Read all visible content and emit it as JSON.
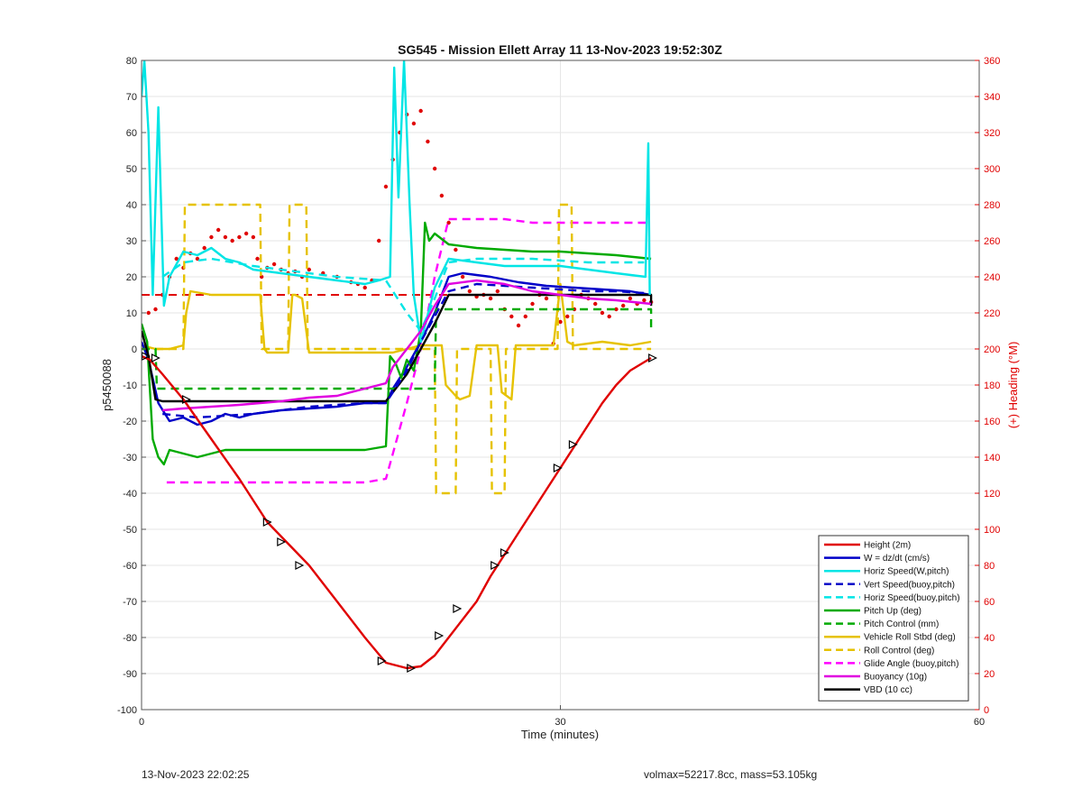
{
  "footer": {
    "timestamp": "13-Nov-2023 22:02:25",
    "params": "volmax=52217.8cc, mass=53.105kg"
  },
  "chart_data": {
    "type": "line",
    "title": "SG545 - Mission Ellett Array 11 13-Nov-2023 19:52:30Z",
    "xlabel": "Time (minutes)",
    "ylabel": "p5450088",
    "y2label": "(+) Heading (°M)",
    "xlim": [
      0,
      60
    ],
    "ylim": [
      -100,
      80
    ],
    "y2lim": [
      0,
      360
    ],
    "xticks": [
      0,
      30,
      60
    ],
    "yticks": [
      -100,
      -90,
      -80,
      -70,
      -60,
      -50,
      -40,
      -30,
      -20,
      -10,
      0,
      10,
      20,
      30,
      40,
      50,
      60,
      70,
      80
    ],
    "y2ticks": [
      0,
      20,
      40,
      60,
      80,
      100,
      120,
      140,
      160,
      180,
      200,
      220,
      240,
      260,
      280,
      300,
      320,
      340,
      360
    ],
    "grid": true,
    "legend_position": "bottom-right",
    "colors": {
      "height": "#e00000",
      "w": "#0000c8",
      "horiz": "#00e5e5",
      "pitch": "#00aa00",
      "roll": "#e6c200",
      "glide": "#ff00ff",
      "buoy": "#e000e0",
      "vbd": "#000000",
      "heading": "#e00000"
    },
    "series": [
      {
        "name": "Height (2m)",
        "color": "#e00000",
        "style": "solid",
        "x": [
          0,
          0.6,
          1.5,
          3,
          5,
          7,
          9,
          10.5,
          12,
          14,
          16,
          17.5,
          19,
          20,
          21,
          22,
          23,
          24,
          25,
          26,
          27,
          28,
          29,
          30,
          31,
          32,
          33,
          34,
          35,
          36.5
        ],
        "y": [
          -2,
          -3,
          -7,
          -14,
          -25,
          -36,
          -48,
          -54,
          -60,
          -70,
          -80,
          -87,
          -88.5,
          -88,
          -85,
          -80,
          -75,
          -70,
          -63,
          -57,
          -51,
          -45,
          -39,
          -33,
          -27,
          -21,
          -15,
          -10,
          -6,
          -2.5
        ],
        "markers": [
          [
            0.3,
            -2
          ],
          [
            1,
            -2.5
          ],
          [
            3.2,
            -14
          ],
          [
            9,
            -48
          ],
          [
            10,
            -53.5
          ],
          [
            11.3,
            -60
          ],
          [
            17.2,
            -86.5
          ],
          [
            19.3,
            -88.5
          ],
          [
            21.3,
            -79.5
          ],
          [
            22.6,
            -72
          ],
          [
            25.3,
            -60
          ],
          [
            26,
            -56.5
          ],
          [
            29.8,
            -33
          ],
          [
            30.9,
            -26.5
          ],
          [
            36.6,
            -2.5
          ]
        ]
      },
      {
        "name": "W = dz/dt (cm/s)",
        "color": "#0000c8",
        "style": "solid",
        "x": [
          0,
          0.5,
          1.2,
          2,
          3,
          4,
          5,
          6,
          7,
          8,
          10,
          12,
          14,
          16,
          17.5,
          18,
          19,
          20,
          21,
          22,
          23,
          25,
          27,
          29,
          31,
          33,
          35,
          36.5
        ],
        "y": [
          2,
          -3,
          -15,
          -20,
          -19,
          -21,
          -20,
          -18,
          -19,
          -18,
          -17,
          -16.5,
          -16,
          -15,
          -15,
          -11,
          -5,
          2,
          10,
          20,
          21,
          20,
          18.5,
          17.5,
          17,
          16.5,
          16,
          15
        ]
      },
      {
        "name": "Horiz Speed(W,pitch)",
        "color": "#00e5e5",
        "style": "solid",
        "x": [
          0,
          0.2,
          0.5,
          0.8,
          1.2,
          1.6,
          2,
          3,
          4,
          5,
          6,
          7,
          8,
          10,
          12,
          14,
          16,
          17,
          17.8,
          18.1,
          18.4,
          18.8,
          19.2,
          19.5,
          20,
          21,
          22,
          24,
          26,
          28,
          30,
          32,
          34,
          36.1,
          36.3,
          36.4
        ],
        "y": [
          70,
          80,
          60,
          15,
          67,
          12,
          20,
          27,
          26,
          28,
          25,
          24,
          22,
          21,
          20,
          19,
          18,
          19,
          20,
          78,
          42,
          80,
          40,
          15,
          2,
          17,
          25,
          24,
          23,
          23,
          23,
          22,
          21,
          20,
          57,
          15
        ]
      },
      {
        "name": "Vert Speed(buoy,pitch)",
        "color": "#0000c8",
        "style": "dashed",
        "x": [
          1.5,
          4,
          6,
          8,
          10,
          12,
          14,
          16,
          17.5,
          19,
          20,
          21,
          22,
          24,
          26,
          28,
          30,
          32,
          34,
          36
        ],
        "y": [
          -18,
          -19,
          -18.5,
          -18,
          -17,
          -16,
          -15.5,
          -15,
          -15,
          -6,
          2,
          9,
          16,
          18,
          17.5,
          17,
          16.5,
          16,
          16,
          15.5
        ]
      },
      {
        "name": "Horiz Speed(buoy,pitch)",
        "color": "#00e5e5",
        "style": "dashed",
        "x": [
          1.5,
          3,
          5,
          8,
          10,
          14,
          17.5,
          19,
          20,
          21,
          22,
          24,
          26,
          28,
          30,
          32,
          34,
          36
        ],
        "y": [
          20,
          24,
          25,
          23,
          22,
          20,
          19,
          10,
          5,
          14,
          24,
          25,
          25,
          25,
          24.5,
          24,
          24,
          24
        ]
      },
      {
        "name": "Pitch Up (deg)",
        "color": "#00aa00",
        "style": "solid",
        "x": [
          0,
          0.4,
          0.8,
          1.2,
          1.6,
          2,
          3,
          4,
          6,
          8,
          10,
          12,
          14,
          16,
          17.5,
          17.8,
          18.2,
          18.6,
          19,
          19.5,
          20,
          20.3,
          20.6,
          21,
          22,
          24,
          26,
          28,
          30,
          32,
          34,
          36.5
        ],
        "y": [
          7,
          2,
          -25,
          -30,
          -32,
          -28,
          -29,
          -30,
          -28,
          -28,
          -28,
          -28,
          -28,
          -28,
          -27,
          -2,
          -4,
          -8,
          -3,
          -6,
          5,
          35,
          30,
          32,
          29,
          28,
          27.5,
          27,
          27,
          26.5,
          26,
          25
        ]
      },
      {
        "name": "Pitch Control (mm)",
        "color": "#00aa00",
        "style": "dashed",
        "x": [
          0,
          1,
          1.1,
          17.5,
          17.6,
          21,
          21.1,
          36.5,
          36.5
        ],
        "y": [
          0,
          0,
          -11,
          -11,
          -11,
          -11,
          11,
          11,
          6
        ]
      },
      {
        "name": "Vehicle Roll Stbd (deg)",
        "color": "#e6c200",
        "style": "solid",
        "x": [
          0,
          1,
          2,
          3,
          3.2,
          3.5,
          5,
          7,
          8.5,
          8.8,
          9,
          10.5,
          10.8,
          11,
          11.5,
          12,
          14,
          16,
          17,
          18,
          19,
          20,
          21,
          21.5,
          21.8,
          22.5,
          22.8,
          23.5,
          24,
          25,
          25.5,
          25.8,
          26.5,
          26.8,
          27.5,
          28,
          29.5,
          30,
          30.5,
          31,
          33,
          35,
          36.5
        ],
        "y": [
          1,
          0,
          0,
          1,
          10,
          16,
          15,
          15,
          15,
          0,
          -1,
          -1,
          15,
          15,
          14,
          -1,
          -1,
          -1,
          -1,
          -1,
          0,
          1,
          1,
          1,
          -10,
          -13,
          -14,
          -13,
          1,
          1,
          1,
          -12,
          -14,
          1,
          1,
          1,
          1,
          18,
          2,
          1,
          2,
          1,
          2
        ]
      },
      {
        "name": "Roll Control (deg)",
        "color": "#e6c200",
        "style": "dashed",
        "x": [
          0,
          3,
          3.1,
          8.5,
          8.6,
          10.5,
          10.6,
          11.8,
          11.9,
          21,
          21.1,
          22.5,
          22.6,
          25,
          25.1,
          26,
          26.1,
          29.8,
          29.9,
          30.8,
          30.9,
          36.5
        ],
        "y": [
          0,
          0,
          40,
          40,
          0,
          0,
          40,
          40,
          0,
          0,
          -40,
          -40,
          0,
          0,
          -40,
          -40,
          0,
          0,
          40,
          40,
          0,
          0
        ]
      },
      {
        "name": "Glide Angle (buoy,pitch)",
        "color": "#ff00ff",
        "style": "dashed",
        "x": [
          1.8,
          4,
          6,
          8,
          10,
          12,
          14,
          16,
          17.5,
          19,
          20,
          21,
          22,
          24,
          26,
          28,
          30,
          32,
          34,
          36.5
        ],
        "y": [
          -37,
          -37,
          -37,
          -37,
          -37,
          -37,
          -37,
          -37,
          -36,
          -15,
          0,
          20,
          36,
          36,
          36,
          35,
          35,
          35,
          35,
          35
        ]
      },
      {
        "name": "Buoyancy (10g)",
        "color": "#e000e0",
        "style": "solid",
        "x": [
          1.5,
          3,
          5,
          7,
          10,
          12,
          14,
          16,
          17.5,
          18,
          19,
          20,
          21,
          22,
          24,
          26,
          28,
          30,
          32,
          34,
          36.5
        ],
        "y": [
          -17,
          -16.5,
          -16,
          -15.5,
          -14.5,
          -13.5,
          -13,
          -11,
          -9.5,
          -5,
          0,
          5,
          12,
          18,
          19,
          18,
          16,
          15,
          14,
          13.5,
          12.5
        ]
      },
      {
        "name": "VBD (10 cc)",
        "color": "#000000",
        "style": "solid",
        "x": [
          0,
          0.5,
          1,
          1.5,
          17.5,
          19,
          20,
          21,
          22,
          36.5,
          36.5
        ],
        "y": [
          5,
          -2,
          -14,
          -14.5,
          -14.5,
          -7,
          0,
          7,
          15,
          15,
          12
        ]
      }
    ],
    "heading_series": {
      "name": "Heading",
      "color": "#e00000",
      "style": "dotted",
      "axis": "right",
      "x": [
        0.5,
        1,
        1.5,
        2,
        2.5,
        3,
        3.5,
        4,
        4.5,
        5,
        5.5,
        6,
        6.5,
        7,
        7.5,
        8,
        8.3,
        8.6,
        9,
        9.5,
        10,
        10.5,
        11,
        11.5,
        12,
        13,
        14,
        15,
        15.5,
        16,
        16.5,
        17,
        17.5,
        18,
        18.5,
        19,
        19.5,
        20,
        20.5,
        21,
        21.5,
        22,
        22.5,
        23,
        23.5,
        24,
        24.5,
        25,
        25.5,
        26,
        26.5,
        27,
        27.5,
        28,
        28.5,
        29,
        29.5,
        30,
        30.5,
        31,
        31.5,
        32,
        32.5,
        33,
        33.5,
        34,
        34.5,
        35,
        35.5,
        36,
        36.5
      ],
      "y": [
        220,
        222,
        230,
        240,
        250,
        245,
        253,
        250,
        256,
        262,
        266,
        262,
        260,
        262,
        264,
        262,
        250,
        240,
        245,
        247,
        244,
        242,
        243,
        240,
        244,
        242,
        240,
        237,
        236,
        234,
        238,
        260,
        290,
        305,
        320,
        330,
        325,
        332,
        315,
        300,
        285,
        270,
        255,
        240,
        232,
        229,
        230,
        228,
        232,
        222,
        218,
        213,
        218,
        225,
        230,
        228,
        203,
        215,
        218,
        222,
        230,
        228,
        225,
        220,
        218,
        222,
        224,
        228,
        225,
        227,
        226
      ]
    },
    "reference_line": {
      "y": 15,
      "color": "#e00000",
      "style": "dashed",
      "x": [
        0,
        36.5
      ]
    }
  }
}
